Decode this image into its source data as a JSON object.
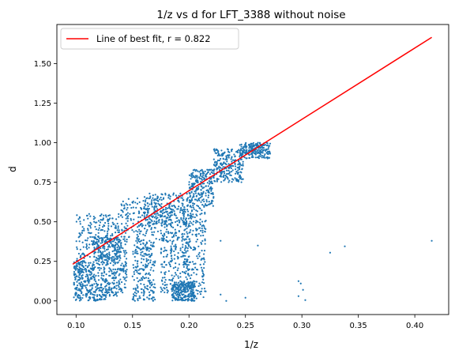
{
  "chart_data": {
    "type": "scatter",
    "title": "1/z vs d for LFT_3388 without noise",
    "xlabel": "1/z",
    "ylabel": "d",
    "xlim": [
      0.083,
      0.43
    ],
    "ylim": [
      -0.086,
      1.747
    ],
    "grid": false,
    "legend_position": "top-left",
    "x_ticks": [
      "0.10",
      "0.15",
      "0.20",
      "0.25",
      "0.30",
      "0.35",
      "0.40"
    ],
    "y_ticks": [
      "0.00",
      "0.25",
      "0.50",
      "0.75",
      "1.00",
      "1.25",
      "1.50"
    ],
    "x_tick_values": [
      0.1,
      0.15,
      0.2,
      0.25,
      0.3,
      0.35,
      0.4
    ],
    "y_tick_values": [
      0.0,
      0.25,
      0.5,
      0.75,
      1.0,
      1.25,
      1.5
    ],
    "colors": {
      "scatter": "#1f77b4",
      "fit_line": "#ff0000"
    },
    "fit_line": {
      "label": "Line of best fit, r = 0.822",
      "x": [
        0.097,
        0.415
      ],
      "y": [
        0.232,
        1.666
      ]
    },
    "scatter_outliers": {
      "x": [
        0.415,
        0.338,
        0.325,
        0.261,
        0.228,
        0.297,
        0.299,
        0.301,
        0.297,
        0.303,
        0.25,
        0.211,
        0.228,
        0.233
      ],
      "y": [
        0.38,
        0.345,
        0.305,
        0.35,
        0.38,
        0.125,
        0.11,
        0.07,
        0.03,
        0.005,
        0.02,
        0.06,
        0.04,
        0.0
      ]
    },
    "scatter_regions": [
      {
        "x": [
          0.098,
          0.115
        ],
        "y": [
          0.0,
          0.25
        ]
      },
      {
        "x": [
          0.1,
          0.14
        ],
        "y": [
          0.25,
          0.55
        ]
      },
      {
        "x": [
          0.115,
          0.128
        ],
        "y": [
          0.0,
          0.42
        ]
      },
      {
        "x": [
          0.128,
          0.145
        ],
        "y": [
          0.03,
          0.4
        ]
      },
      {
        "x": [
          0.14,
          0.185
        ],
        "y": [
          0.38,
          0.65
        ]
      },
      {
        "x": [
          0.15,
          0.17
        ],
        "y": [
          0.0,
          0.38
        ]
      },
      {
        "x": [
          0.16,
          0.205
        ],
        "y": [
          0.48,
          0.68
        ]
      },
      {
        "x": [
          0.175,
          0.2
        ],
        "y": [
          0.05,
          0.5
        ]
      },
      {
        "x": [
          0.185,
          0.205
        ],
        "y": [
          0.0,
          0.12
        ]
      },
      {
        "x": [
          0.195,
          0.215
        ],
        "y": [
          0.0,
          0.6
        ]
      },
      {
        "x": [
          0.2,
          0.222
        ],
        "y": [
          0.6,
          0.83
        ]
      },
      {
        "x": [
          0.222,
          0.248
        ],
        "y": [
          0.75,
          0.96
        ]
      },
      {
        "x": [
          0.245,
          0.272
        ],
        "y": [
          0.9,
          1.0
        ]
      }
    ]
  }
}
